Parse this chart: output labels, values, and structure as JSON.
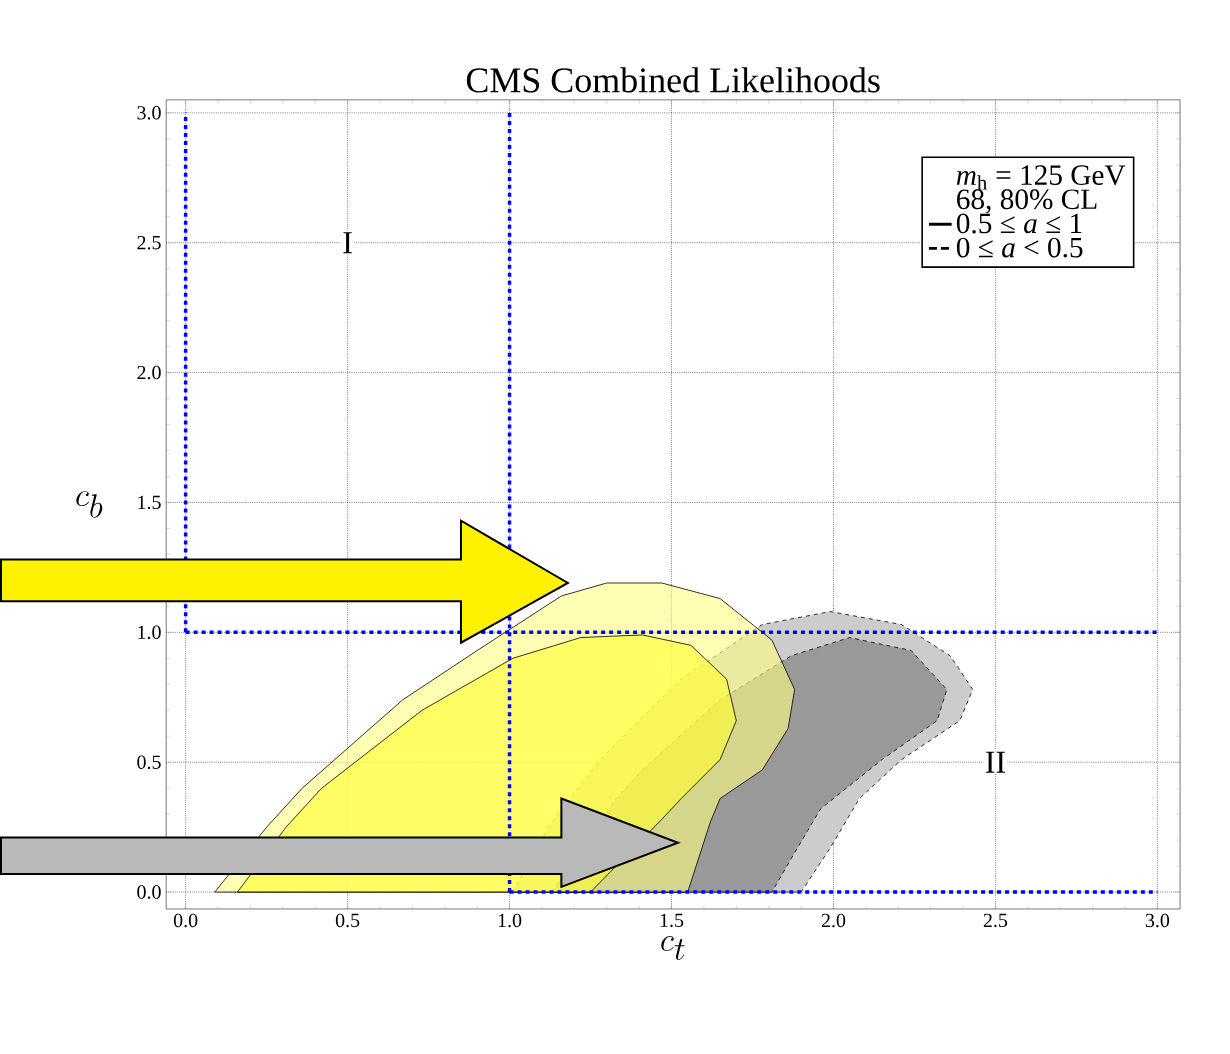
{
  "chart_data": {
    "type": "area",
    "title": "CMS Combined Likelihoods",
    "xlabel": "c_t",
    "ylabel": "c_b",
    "legend_title": "*m*$_{h}$ = 125 GeV",
    "xlim": [
      -0.06,
      3.07
    ],
    "ylim": [
      -0.065,
      3.05
    ],
    "xticks": [
      {
        "value": 0,
        "label": "0.0"
      },
      {
        "value": 0.5,
        "label": "0.5"
      },
      {
        "value": 1,
        "label": "1.0"
      },
      {
        "value": 1.5,
        "label": "1.5"
      },
      {
        "value": 2,
        "label": "2.0"
      },
      {
        "value": 2.5,
        "label": "2.5"
      },
      {
        "value": 3,
        "label": "3.0"
      }
    ],
    "yticks": [
      {
        "value": 0,
        "label": "0.0"
      },
      {
        "value": 0.5,
        "label": "0.5"
      },
      {
        "value": 1,
        "label": "1.0"
      },
      {
        "value": 1.5,
        "label": "1.5"
      },
      {
        "value": 2,
        "label": "2.0"
      },
      {
        "value": 2.5,
        "label": "2.5"
      },
      {
        "value": 3,
        "label": "3.0"
      }
    ],
    "grid": true,
    "legend": "top right",
    "annotations": [
      {
        "text": "I",
        "x": 0.5,
        "y": 2.5
      },
      {
        "text": "II",
        "x": 2.5,
        "y": 0.5
      },
      "68, 80% CL"
    ],
    "series": [
      {
        "name": "0 ≤ *a* < 0.5",
        "color": "#cccccc",
        "line_style": "dashed",
        "x": [
          1.01,
          1.12,
          1.28,
          1.53,
          1.78,
          1.99,
          2.21,
          2.36,
          2.43,
          2.39,
          2.21,
          2.08,
          1.99,
          1.9
        ],
        "values": [
          0,
          0.25,
          0.51,
          0.82,
          1.03,
          1.08,
          1.03,
          0.91,
          0.78,
          0.66,
          0.51,
          0.36,
          0.17,
          0
        ]
      },
      {
        "color": "#999999",
        "line_style": "dashed",
        "x": [
          1.13,
          1.33,
          1.41,
          1.65,
          1.87,
          2.05,
          2.24,
          2.35,
          2.32,
          2.15,
          1.96,
          1.87,
          1.81
        ],
        "values": [
          0,
          0.36,
          0.47,
          0.74,
          0.91,
          0.98,
          0.93,
          0.78,
          0.66,
          0.51,
          0.32,
          0.13,
          0
        ]
      },
      {
        "name": "0.5 ≤ *a* ≤ 1",
        "color": "#ffff80",
        "line_style": "solid",
        "x": [
          0.09,
          0.25,
          0.36,
          0.67,
          0.9,
          1.16,
          1.3,
          1.47,
          1.65,
          1.81,
          1.88,
          1.86,
          1.78,
          1.65,
          1.62,
          1.55
        ],
        "values": [
          0,
          0.25,
          0.4,
          0.74,
          0.93,
          1.14,
          1.19,
          1.19,
          1.13,
          0.97,
          0.78,
          0.63,
          0.47,
          0.36,
          0.27,
          0
        ]
      },
      {
        "color": "#ffff30",
        "line_style": "solid",
        "x": [
          0.16,
          0.31,
          0.42,
          0.73,
          1.01,
          1.22,
          1.41,
          1.56,
          1.67,
          1.7,
          1.65,
          1.53,
          1.47,
          1.25
        ],
        "values": [
          0,
          0.25,
          0.4,
          0.7,
          0.9,
          0.98,
          0.99,
          0.95,
          0.82,
          0.66,
          0.51,
          0.36,
          0.28,
          0
        ]
      },
      {
        "type": "line",
        "color": "#0000ff",
        "line_style": "dotted",
        "x": [
          0,
          0
        ],
        "values": [
          1,
          3
        ]
      },
      {
        "type": "line",
        "color": "#0000ff",
        "line_style": "dotted",
        "x": [
          1,
          1
        ],
        "values": [
          0,
          3
        ]
      },
      {
        "type": "line",
        "color": "#0000ff",
        "line_style": "dotted",
        "x": [
          0,
          3
        ],
        "values": [
          1,
          1
        ]
      },
      {
        "type": "line",
        "color": "#0000ff",
        "line_style": "dotted",
        "x": [
          1,
          3
        ],
        "values": [
          0,
          0
        ]
      }
    ]
  }
}
